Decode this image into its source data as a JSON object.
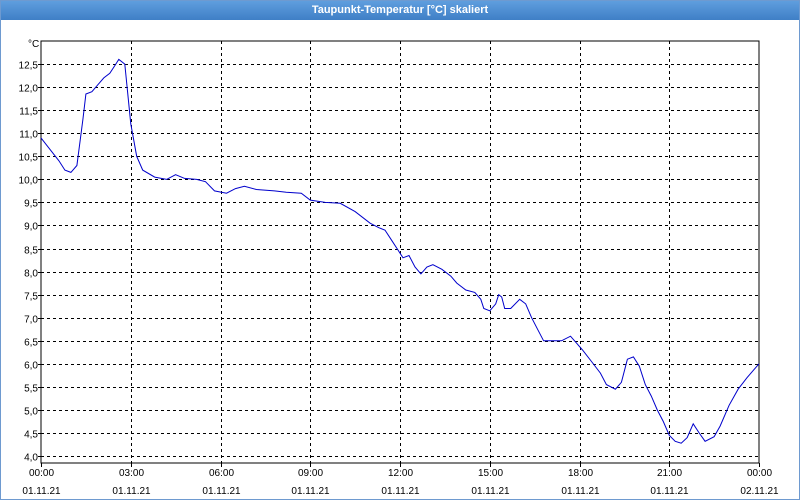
{
  "window": {
    "title": "Taupunkt-Temperatur [°C] skaliert"
  },
  "chart_data": {
    "type": "line",
    "title": "Taupunkt-Temperatur [°C] skaliert",
    "ylabel": "°C",
    "xlabel": "",
    "ylim": [
      3.85,
      13.0
    ],
    "xlim": [
      "01.11.21 00:00",
      "02.11.21 00:00"
    ],
    "grid": true,
    "y_ticks": [
      "4,0",
      "4,5",
      "5,0",
      "5,5",
      "6,0",
      "6,5",
      "7,0",
      "7,5",
      "8,0",
      "8,5",
      "9,0",
      "9,5",
      "10,0",
      "10,5",
      "11,0",
      "11,5",
      "12,0",
      "12,5"
    ],
    "x_ticks": [
      {
        "time": "00:00",
        "date": "01.11.21"
      },
      {
        "time": "03:00",
        "date": "01.11.21"
      },
      {
        "time": "06:00",
        "date": "01.11.21"
      },
      {
        "time": "09:00",
        "date": "01.11.21"
      },
      {
        "time": "12:00",
        "date": "01.11.21"
      },
      {
        "time": "15:00",
        "date": "01.11.21"
      },
      {
        "time": "18:00",
        "date": "01.11.21"
      },
      {
        "time": "21:00",
        "date": "01.11.21"
      },
      {
        "time": "00:00",
        "date": "02.11.21"
      }
    ],
    "series": [
      {
        "color": "#0000cc",
        "points": [
          [
            "01.11.21 00:00",
            10.9
          ],
          [
            "01.11.21 00:18",
            10.65
          ],
          [
            "01.11.21 00:36",
            10.4
          ],
          [
            "01.11.21 00:48",
            10.2
          ],
          [
            "01.11.21 01:00",
            10.15
          ],
          [
            "01.11.21 01:12",
            10.3
          ],
          [
            "01.11.21 01:24",
            11.3
          ],
          [
            "01.11.21 01:30",
            11.85
          ],
          [
            "01.11.21 01:42",
            11.9
          ],
          [
            "01.11.21 01:54",
            12.05
          ],
          [
            "01.11.21 02:06",
            12.2
          ],
          [
            "01.11.21 02:18",
            12.3
          ],
          [
            "01.11.21 02:30",
            12.5
          ],
          [
            "01.11.21 02:36",
            12.6
          ],
          [
            "01.11.21 02:48",
            12.5
          ],
          [
            "01.11.21 03:00",
            11.2
          ],
          [
            "01.11.21 03:12",
            10.5
          ],
          [
            "01.11.21 03:24",
            10.2
          ],
          [
            "01.11.21 03:48",
            10.05
          ],
          [
            "01.11.21 04:12",
            10.0
          ],
          [
            "01.11.21 04:30",
            10.1
          ],
          [
            "01.11.21 04:48",
            10.02
          ],
          [
            "01.11.21 05:12",
            10.0
          ],
          [
            "01.11.21 05:30",
            9.95
          ],
          [
            "01.11.21 05:48",
            9.75
          ],
          [
            "01.11.21 06:12",
            9.7
          ],
          [
            "01.11.21 06:30",
            9.8
          ],
          [
            "01.11.21 06:48",
            9.85
          ],
          [
            "01.11.21 07:12",
            9.78
          ],
          [
            "01.11.21 07:48",
            9.75
          ],
          [
            "01.11.21 08:12",
            9.72
          ],
          [
            "01.11.21 08:42",
            9.7
          ],
          [
            "01.11.21 09:00",
            9.55
          ],
          [
            "01.11.21 09:30",
            9.5
          ],
          [
            "01.11.21 10:00",
            9.48
          ],
          [
            "01.11.21 10:30",
            9.3
          ],
          [
            "01.11.21 11:00",
            9.05
          ],
          [
            "01.11.21 11:18",
            8.95
          ],
          [
            "01.11.21 11:30",
            8.9
          ],
          [
            "01.11.21 11:42",
            8.7
          ],
          [
            "01.11.21 11:54",
            8.5
          ],
          [
            "01.11.21 12:06",
            8.3
          ],
          [
            "01.11.21 12:18",
            8.35
          ],
          [
            "01.11.21 12:30",
            8.1
          ],
          [
            "01.11.21 12:42",
            7.95
          ],
          [
            "01.11.21 12:54",
            8.1
          ],
          [
            "01.11.21 13:06",
            8.15
          ],
          [
            "01.11.21 13:24",
            8.05
          ],
          [
            "01.11.21 13:42",
            7.9
          ],
          [
            "01.11.21 13:54",
            7.75
          ],
          [
            "01.11.21 14:12",
            7.6
          ],
          [
            "01.11.21 14:30",
            7.55
          ],
          [
            "01.11.21 14:42",
            7.4
          ],
          [
            "01.11.21 14:48",
            7.2
          ],
          [
            "01.11.21 15:00",
            7.15
          ],
          [
            "01.11.21 15:12",
            7.3
          ],
          [
            "01.11.21 15:18",
            7.5
          ],
          [
            "01.11.21 15:24",
            7.45
          ],
          [
            "01.11.21 15:30",
            7.2
          ],
          [
            "01.11.21 15:42",
            7.2
          ],
          [
            "01.11.21 16:00",
            7.4
          ],
          [
            "01.11.21 16:12",
            7.3
          ],
          [
            "01.11.21 16:24",
            7.0
          ],
          [
            "01.11.21 16:36",
            6.75
          ],
          [
            "01.11.21 16:48",
            6.5
          ],
          [
            "01.11.21 17:06",
            6.5
          ],
          [
            "01.11.21 17:24",
            6.5
          ],
          [
            "01.11.21 17:42",
            6.6
          ],
          [
            "01.11.21 17:54",
            6.45
          ],
          [
            "01.11.21 18:06",
            6.3
          ],
          [
            "01.11.21 18:24",
            6.05
          ],
          [
            "01.11.21 18:42",
            5.8
          ],
          [
            "01.11.21 18:54",
            5.55
          ],
          [
            "01.11.21 19:12",
            5.45
          ],
          [
            "01.11.21 19:24",
            5.6
          ],
          [
            "01.11.21 19:36",
            6.1
          ],
          [
            "01.11.21 19:48",
            6.15
          ],
          [
            "01.11.21 20:00",
            5.95
          ],
          [
            "01.11.21 20:12",
            5.55
          ],
          [
            "01.11.21 20:24",
            5.3
          ],
          [
            "01.11.21 20:36",
            5.0
          ],
          [
            "01.11.21 20:48",
            4.75
          ],
          [
            "01.11.21 21:00",
            4.45
          ],
          [
            "01.11.21 21:12",
            4.32
          ],
          [
            "01.11.21 21:24",
            4.28
          ],
          [
            "01.11.21 21:36",
            4.4
          ],
          [
            "01.11.21 21:48",
            4.7
          ],
          [
            "01.11.21 22:00",
            4.5
          ],
          [
            "01.11.21 22:12",
            4.32
          ],
          [
            "01.11.21 22:30",
            4.42
          ],
          [
            "01.11.21 22:42",
            4.65
          ],
          [
            "01.11.21 23:00",
            5.1
          ],
          [
            "01.11.21 23:18",
            5.45
          ],
          [
            "01.11.21 23:36",
            5.7
          ],
          [
            "02.11.21 00:00",
            6.0
          ]
        ]
      }
    ]
  }
}
